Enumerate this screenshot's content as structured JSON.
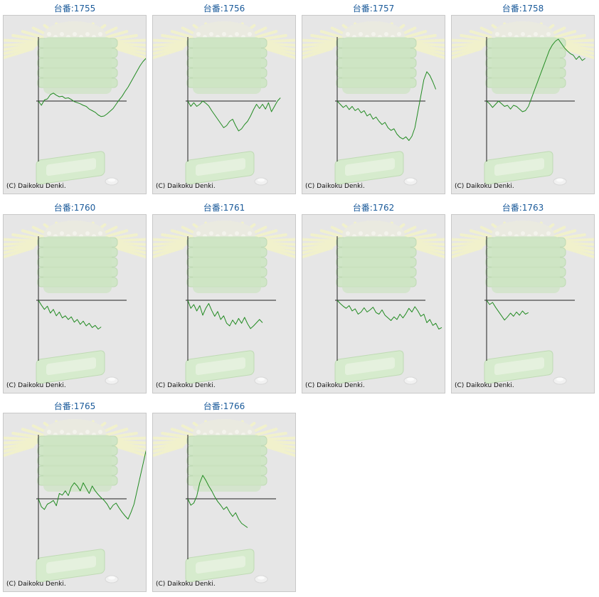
{
  "machine_label": "台番:",
  "copyright": "(C) Daikoku Denki.",
  "colors": {
    "line": "#228B22",
    "axis": "#222222",
    "title": "#1a5a9a",
    "panel_bg": "#e6e6e6"
  },
  "chart_data": [
    {
      "type": "line",
      "id": "1755",
      "y": [
        0,
        -800,
        200,
        400,
        1200,
        1500,
        1100,
        800,
        900,
        500,
        600,
        300,
        -100,
        -300,
        -500,
        -800,
        -1000,
        -1500,
        -1800,
        -2100,
        -2600,
        -2900,
        -2800,
        -2400,
        -1900,
        -1400,
        -600,
        200,
        900,
        1800,
        2600,
        3600,
        4600,
        5600,
        6600,
        7400,
        8000
      ]
    },
    {
      "type": "line",
      "id": "1756",
      "y": [
        0,
        -1000,
        -300,
        -1000,
        -600,
        0,
        -400,
        -900,
        -1800,
        -2600,
        -3400,
        -4200,
        -5000,
        -4600,
        -3800,
        -3400,
        -4600,
        -5600,
        -5200,
        -4400,
        -3800,
        -2800,
        -1600,
        -600,
        -1400,
        -600,
        -1500,
        -300,
        -2000,
        -1000,
        0,
        600
      ]
    },
    {
      "type": "line",
      "id": "1757",
      "y": [
        0,
        -600,
        -1200,
        -800,
        -1600,
        -1000,
        -1800,
        -1400,
        -2200,
        -1800,
        -2800,
        -2400,
        -3400,
        -3000,
        -3800,
        -4400,
        -4000,
        -5000,
        -5500,
        -5200,
        -6200,
        -6800,
        -7100,
        -6700,
        -7400,
        -6600,
        -5000,
        -2000,
        1000,
        4000,
        5500,
        4800,
        3600,
        2200
      ]
    },
    {
      "type": "line",
      "id": "1758",
      "y": [
        0,
        -500,
        -1200,
        -600,
        0,
        -500,
        -1000,
        -800,
        -1500,
        -800,
        -1000,
        -1500,
        -2000,
        -1800,
        -1000,
        500,
        2000,
        3500,
        5000,
        6500,
        8000,
        9500,
        10500,
        11200,
        11600,
        10800,
        10000,
        9400,
        8900,
        8600,
        7800,
        8400,
        7600,
        8000
      ]
    },
    {
      "type": "line",
      "id": "1760",
      "y": [
        0,
        -900,
        -1700,
        -1100,
        -2400,
        -1700,
        -2900,
        -2200,
        -3300,
        -2900,
        -3600,
        -3100,
        -4100,
        -3600,
        -4500,
        -3900,
        -4800,
        -4300,
        -5100,
        -4700,
        -5400,
        -5000
      ]
    },
    {
      "type": "line",
      "id": "1761",
      "y": [
        0,
        -1500,
        -800,
        -2000,
        -1000,
        -2800,
        -1500,
        -600,
        -1900,
        -3000,
        -2100,
        -3600,
        -2900,
        -4300,
        -4800,
        -3700,
        -4500,
        -3400,
        -4300,
        -3200,
        -4400,
        -5300,
        -4800,
        -4200,
        -3600,
        -4200
      ]
    },
    {
      "type": "line",
      "id": "1762",
      "y": [
        0,
        -600,
        -1100,
        -1500,
        -1000,
        -2000,
        -1600,
        -2600,
        -2200,
        -1400,
        -2200,
        -1800,
        -1300,
        -2300,
        -2600,
        -1800,
        -2800,
        -3300,
        -3800,
        -3100,
        -3600,
        -2600,
        -3300,
        -2500,
        -1500,
        -2200,
        -1200,
        -2000,
        -3000,
        -2600,
        -4200,
        -3600,
        -4700,
        -4300,
        -5400,
        -5100
      ]
    },
    {
      "type": "line",
      "id": "1763",
      "y": [
        0,
        -800,
        -400,
        -1300,
        -2100,
        -2900,
        -3700,
        -3100,
        -2400,
        -3000,
        -2200,
        -2800,
        -2000,
        -2600,
        -2300
      ]
    },
    {
      "type": "line",
      "id": "1765",
      "y": [
        0,
        -1500,
        -2000,
        -1000,
        -700,
        -300,
        -1300,
        1000,
        700,
        1500,
        600,
        2200,
        3000,
        2400,
        1500,
        3000,
        2000,
        1000,
        2400,
        1500,
        800,
        200,
        -300,
        -1000,
        -2000,
        -1200,
        -800,
        -1700,
        -2500,
        -3200,
        -3800,
        -2500,
        -1000,
        1500,
        4000,
        6500,
        9000,
        8500
      ]
    },
    {
      "type": "line",
      "id": "1766",
      "y": [
        0,
        -1200,
        -800,
        500,
        3000,
        4400,
        3500,
        2400,
        1500,
        400,
        -500,
        -1200,
        -2000,
        -1500,
        -2500,
        -3300,
        -2600,
        -3800,
        -4600,
        -5000,
        -5400
      ]
    }
  ]
}
